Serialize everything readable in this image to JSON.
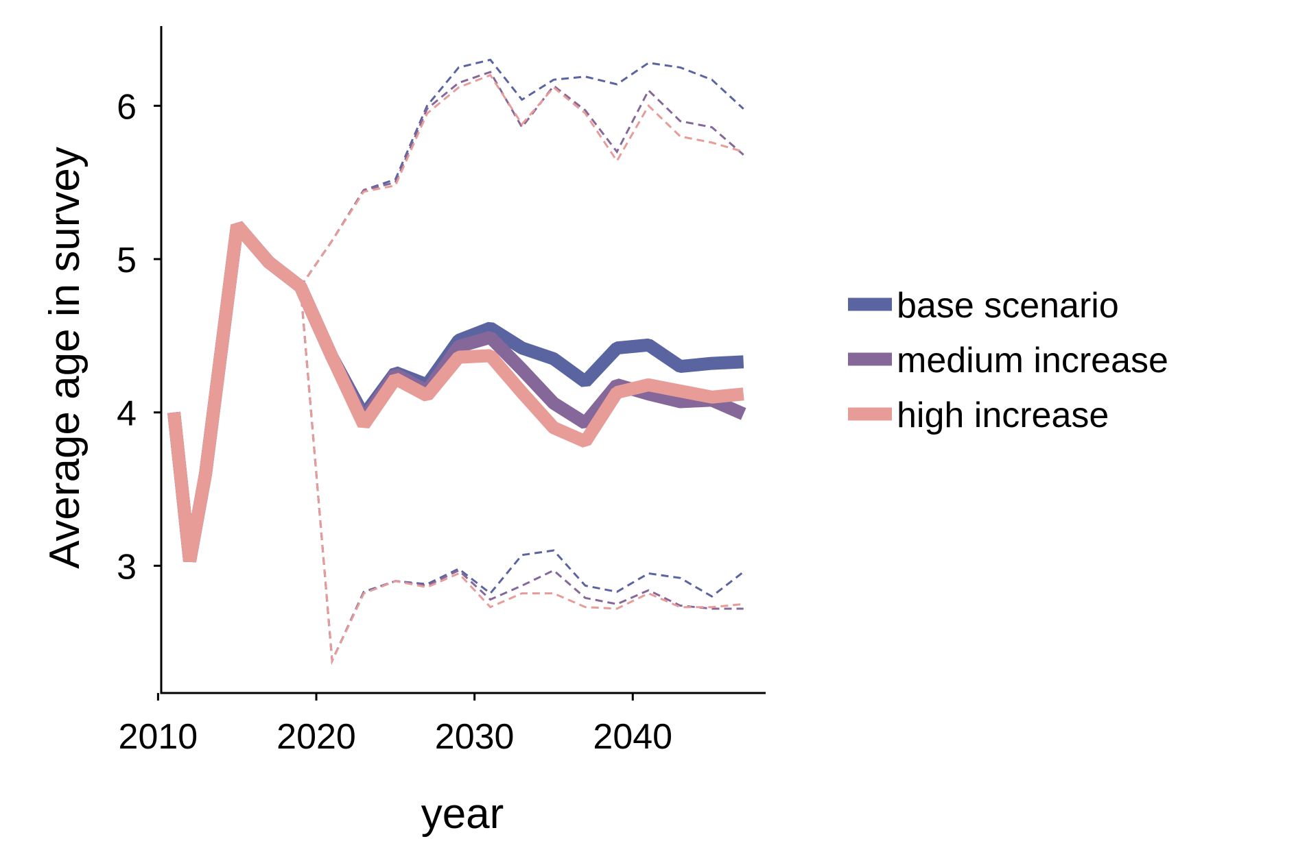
{
  "chart_data": {
    "type": "line",
    "title": "",
    "xlabel": "year",
    "ylabel": "Average age in survey",
    "xlim": [
      2010.2,
      2048.4
    ],
    "ylim": [
      2.17,
      6.52
    ],
    "xticks": [
      2010,
      2020,
      2030,
      2040
    ],
    "yticks": [
      3,
      4,
      5,
      6
    ],
    "grid": false,
    "legend_position": "right",
    "series": [
      {
        "name": "base scenario",
        "color": "#5a64a0",
        "x": [
          2011,
          2012,
          2013,
          2015,
          2017,
          2019,
          2021,
          2023,
          2025,
          2027,
          2029,
          2031,
          2033,
          2035,
          2037,
          2039,
          2041,
          2043,
          2045,
          2047
        ],
        "values": [
          4.0,
          3.03,
          3.6,
          5.22,
          4.98,
          4.82,
          4.36,
          3.98,
          4.26,
          4.18,
          4.47,
          4.55,
          4.42,
          4.35,
          4.2,
          4.42,
          4.44,
          4.3,
          4.32,
          4.33
        ],
        "upper": [
          null,
          null,
          null,
          null,
          null,
          4.82,
          5.12,
          5.45,
          5.52,
          6.0,
          6.25,
          6.3,
          6.04,
          6.17,
          6.19,
          6.14,
          6.28,
          6.25,
          6.17,
          5.98
        ],
        "lower": [
          null,
          null,
          null,
          null,
          null,
          4.82,
          2.38,
          2.83,
          2.9,
          2.88,
          2.98,
          2.82,
          3.07,
          3.1,
          2.87,
          2.83,
          2.95,
          2.92,
          2.8,
          2.96
        ]
      },
      {
        "name": "medium increase",
        "color": "#86679a",
        "x": [
          2011,
          2012,
          2013,
          2015,
          2017,
          2019,
          2021,
          2023,
          2025,
          2027,
          2029,
          2031,
          2033,
          2035,
          2037,
          2039,
          2041,
          2043,
          2045,
          2047
        ],
        "values": [
          4.0,
          3.03,
          3.6,
          5.22,
          4.98,
          4.82,
          4.36,
          3.95,
          4.25,
          4.14,
          4.43,
          4.49,
          4.28,
          4.06,
          3.93,
          4.18,
          4.12,
          4.07,
          4.08,
          3.99
        ],
        "upper": [
          null,
          null,
          null,
          null,
          null,
          4.82,
          5.12,
          5.45,
          5.5,
          5.98,
          6.15,
          6.22,
          5.86,
          6.13,
          5.97,
          5.7,
          6.1,
          5.9,
          5.86,
          5.68
        ],
        "lower": [
          null,
          null,
          null,
          null,
          null,
          4.82,
          2.38,
          2.82,
          2.9,
          2.87,
          2.97,
          2.78,
          2.87,
          2.97,
          2.79,
          2.75,
          2.84,
          2.74,
          2.72,
          2.72
        ]
      },
      {
        "name": "high increase",
        "color": "#e89c98",
        "x": [
          2011,
          2012,
          2013,
          2015,
          2017,
          2019,
          2021,
          2023,
          2025,
          2027,
          2029,
          2031,
          2033,
          2035,
          2037,
          2039,
          2041,
          2043,
          2045,
          2047
        ],
        "values": [
          4.0,
          3.03,
          3.6,
          5.22,
          4.98,
          4.82,
          4.36,
          3.92,
          4.22,
          4.11,
          4.36,
          4.37,
          4.13,
          3.9,
          3.81,
          4.13,
          4.18,
          4.14,
          4.1,
          4.12
        ],
        "upper": [
          null,
          null,
          null,
          null,
          null,
          4.82,
          5.12,
          5.44,
          5.48,
          5.95,
          6.12,
          6.2,
          5.88,
          6.12,
          5.95,
          5.64,
          6.0,
          5.8,
          5.76,
          5.7
        ],
        "lower": [
          null,
          null,
          null,
          null,
          null,
          4.82,
          2.38,
          2.82,
          2.9,
          2.86,
          2.95,
          2.73,
          2.82,
          2.82,
          2.73,
          2.72,
          2.82,
          2.73,
          2.73,
          2.75
        ]
      }
    ]
  }
}
